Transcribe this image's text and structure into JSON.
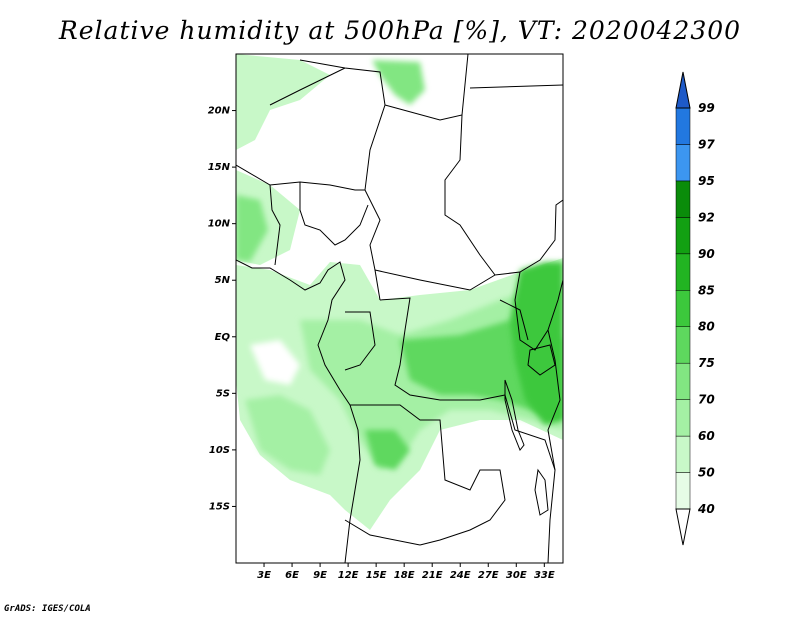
{
  "title": "Relative humidity at 500hPa [%], VT: 2020042300",
  "credit": "GrADS: IGES/COLA",
  "map": {
    "lat_labels": [
      "20N",
      "15N",
      "10N",
      "5N",
      "EQ",
      "5S",
      "10S",
      "15S"
    ],
    "lon_labels": [
      "3E",
      "6E",
      "9E",
      "12E",
      "15E",
      "18E",
      "21E",
      "24E",
      "27E",
      "30E",
      "33E"
    ],
    "lat_values": [
      20,
      15,
      10,
      5,
      0,
      -5,
      -10,
      -15
    ],
    "lon_values": [
      3,
      6,
      9,
      12,
      15,
      18,
      21,
      24,
      27,
      30,
      33
    ],
    "lon_range": [
      0,
      35
    ],
    "lat_range": [
      -20,
      25
    ]
  },
  "colorbar": {
    "labels": [
      "99",
      "97",
      "95",
      "92",
      "90",
      "85",
      "80",
      "75",
      "70",
      "60",
      "50",
      "40"
    ],
    "colors": [
      "#ffffff",
      "#e6fce6",
      "#c8f8c8",
      "#a4f0a4",
      "#82e682",
      "#5ed85e",
      "#3cc83c",
      "#22b422",
      "#12a012",
      "#0a8c0a",
      "#3c96f0",
      "#2278e0",
      "#1e5ac8"
    ]
  }
}
